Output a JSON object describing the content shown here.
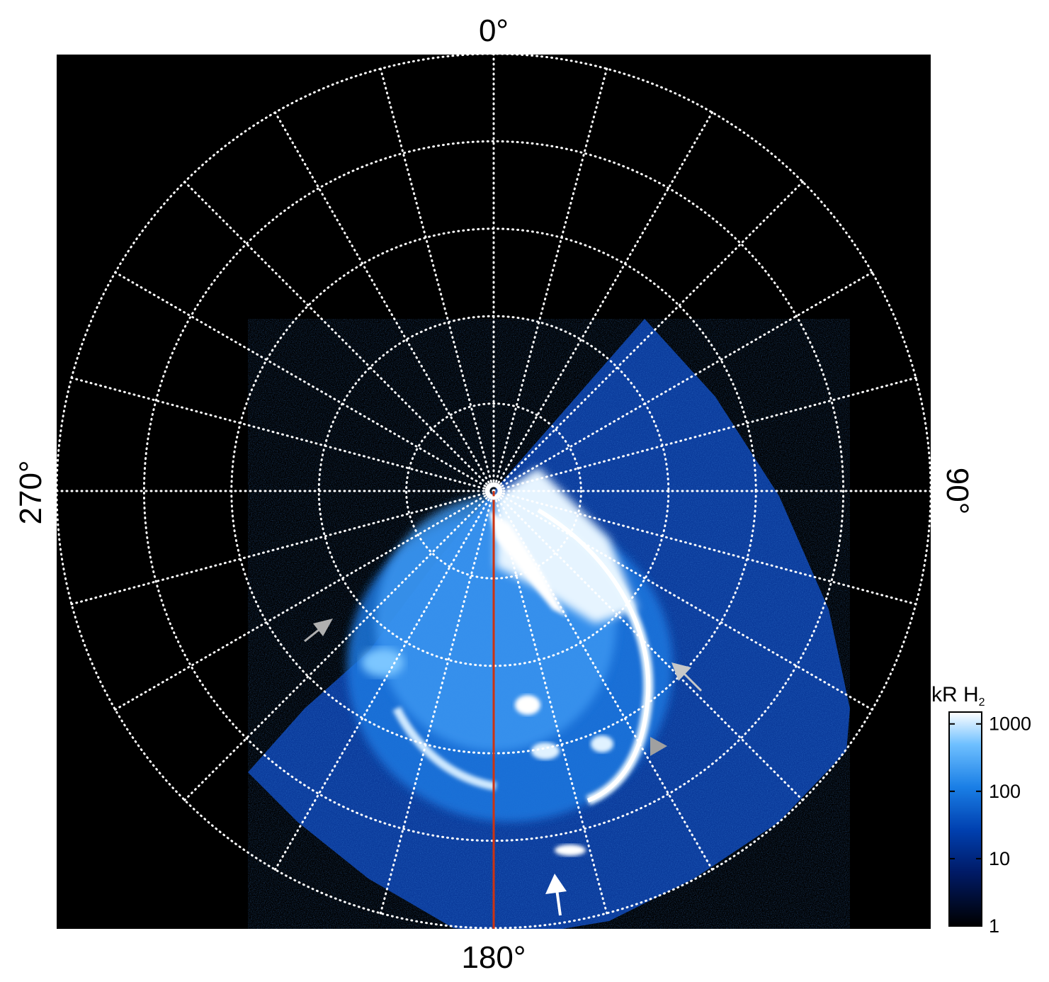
{
  "labels": {
    "top": "0°",
    "bottom": "180°",
    "left": "270°",
    "right": "90°"
  },
  "colorbar": {
    "title": "kR H",
    "title_sub": "2",
    "ticks": [
      "1000",
      "100",
      "10",
      "1"
    ],
    "tick_values": [
      1000,
      100,
      10,
      1
    ],
    "scale": "log",
    "range": [
      1,
      1500
    ],
    "colors": [
      "#000000",
      "#001a66",
      "#0040b0",
      "#1a7fe6",
      "#6fc0ff",
      "#ffffff"
    ]
  },
  "plot": {
    "background": "#000000",
    "grid_color": "#ffffff",
    "meridian_step_deg": 15,
    "ring_count": 5,
    "meridian_line_color": "#cc3311"
  },
  "annotations": [
    {
      "name": "gray-arrow-left",
      "color": "#b0b0b0"
    },
    {
      "name": "gray-arrow-right-upper",
      "color": "#c8c8c8"
    },
    {
      "name": "gray-triangle-right",
      "color": "#a0a0a0"
    },
    {
      "name": "white-arrow-bottom",
      "color": "#ffffff"
    }
  ]
}
